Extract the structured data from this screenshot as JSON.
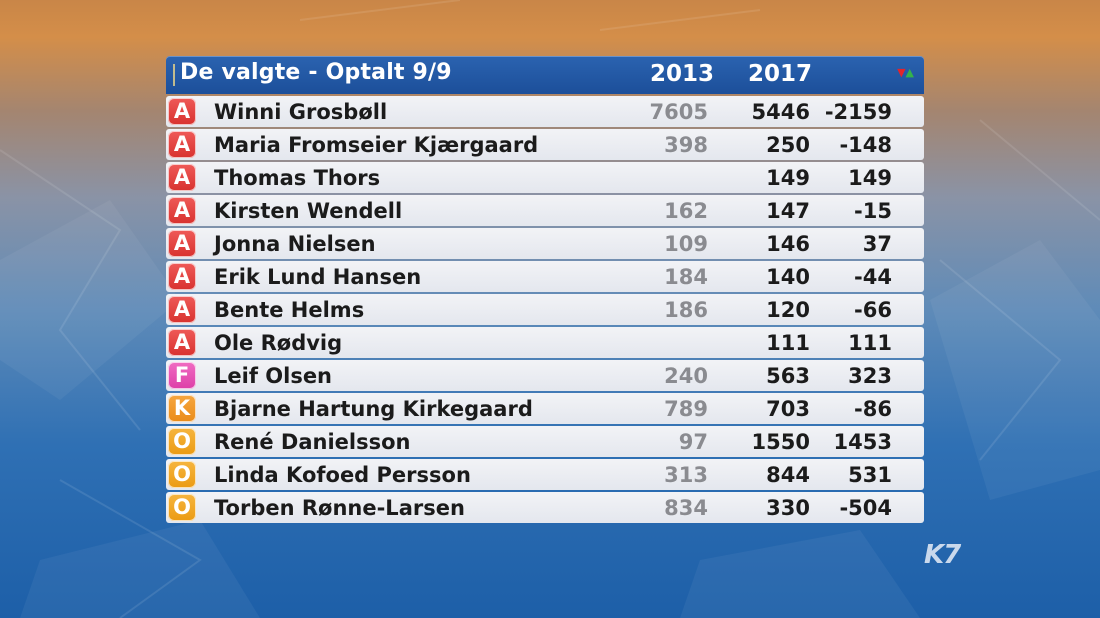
{
  "header": {
    "title": "De valgte - Optalt 9/9",
    "col_2013": "2013",
    "col_2017": "2017",
    "arrow_down": "▼",
    "arrow_up": "▲"
  },
  "rows": [
    {
      "party": "A",
      "name": "Winni Grosbøll",
      "v2013": "7605",
      "v2017": "5446",
      "diff": "-2159"
    },
    {
      "party": "A",
      "name": "Maria Fromseier Kjærgaard",
      "v2013": "398",
      "v2017": "250",
      "diff": "-148"
    },
    {
      "party": "A",
      "name": "Thomas Thors",
      "v2013": "",
      "v2017": "149",
      "diff": "149"
    },
    {
      "party": "A",
      "name": "Kirsten Wendell",
      "v2013": "162",
      "v2017": "147",
      "diff": "-15"
    },
    {
      "party": "A",
      "name": "Jonna Nielsen",
      "v2013": "109",
      "v2017": "146",
      "diff": "37"
    },
    {
      "party": "A",
      "name": "Erik Lund Hansen",
      "v2013": "184",
      "v2017": "140",
      "diff": "-44"
    },
    {
      "party": "A",
      "name": "Bente Helms",
      "v2013": "186",
      "v2017": "120",
      "diff": "-66"
    },
    {
      "party": "A",
      "name": "Ole Rødvig",
      "v2013": "",
      "v2017": "111",
      "diff": "111"
    },
    {
      "party": "F",
      "name": "Leif Olsen",
      "v2013": "240",
      "v2017": "563",
      "diff": "323"
    },
    {
      "party": "K",
      "name": "Bjarne Hartung Kirkegaard",
      "v2013": "789",
      "v2017": "703",
      "diff": "-86"
    },
    {
      "party": "O",
      "name": "René Danielsson",
      "v2013": "97",
      "v2017": "1550",
      "diff": "1453"
    },
    {
      "party": "O",
      "name": "Linda Kofoed Persson",
      "v2013": "313",
      "v2017": "844",
      "diff": "531"
    },
    {
      "party": "O",
      "name": "Torben Rønne-Larsen",
      "v2013": "834",
      "v2017": "330",
      "diff": "-504"
    }
  ],
  "colors": {
    "A": "#dd3a37",
    "F": "#e24fb2",
    "K": "#ee9422",
    "O": "#eea21c",
    "header": "#1f55a2"
  },
  "logo": "K7"
}
